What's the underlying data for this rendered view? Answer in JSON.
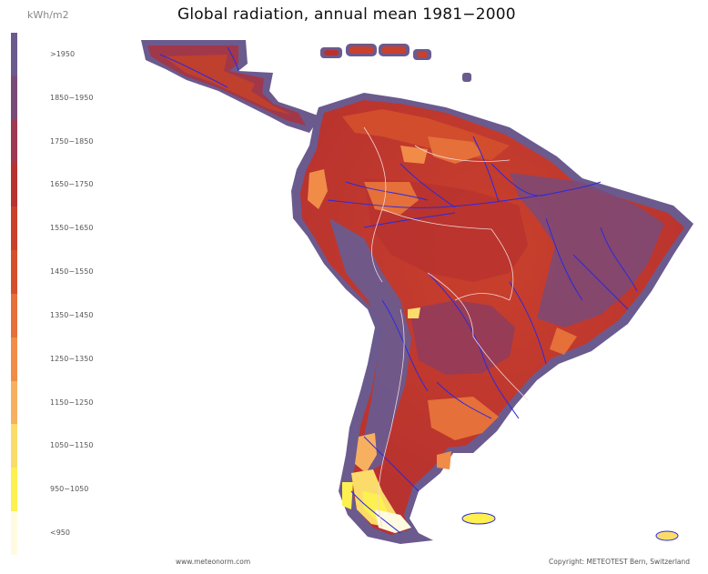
{
  "title": "Global radiation, annual mean 1981−2000",
  "unit": "kWh/m2",
  "legend": [
    {
      "label": ">1950",
      "color": "#6b5a8e"
    },
    {
      "label": "1850−1950",
      "color": "#7a4a78"
    },
    {
      "label": "1750−1850",
      "color": "#9e3a52"
    },
    {
      "label": "1650−1750",
      "color": "#b8322f"
    },
    {
      "label": "1550−1650",
      "color": "#c9402c"
    },
    {
      "label": "1450−1550",
      "color": "#d4502c"
    },
    {
      "label": "1350−1450",
      "color": "#e5703a"
    },
    {
      "label": "1250−1350",
      "color": "#f08c48"
    },
    {
      "label": "1150−1250",
      "color": "#f7b060"
    },
    {
      "label": "1050−1150",
      "color": "#fbdc6a"
    },
    {
      "label": "950−1050",
      "color": "#fdf050"
    },
    {
      "label": "<950",
      "color": "#fffbe0"
    }
  ],
  "footer": {
    "left": "www.meteonorm.com",
    "right": "Copyright: METEOTEST Bern, Switzerland"
  },
  "colors": {
    "river": "#2a2ae0",
    "border": "#f2d6d6",
    "coast_halo": "#7a6a9c"
  }
}
